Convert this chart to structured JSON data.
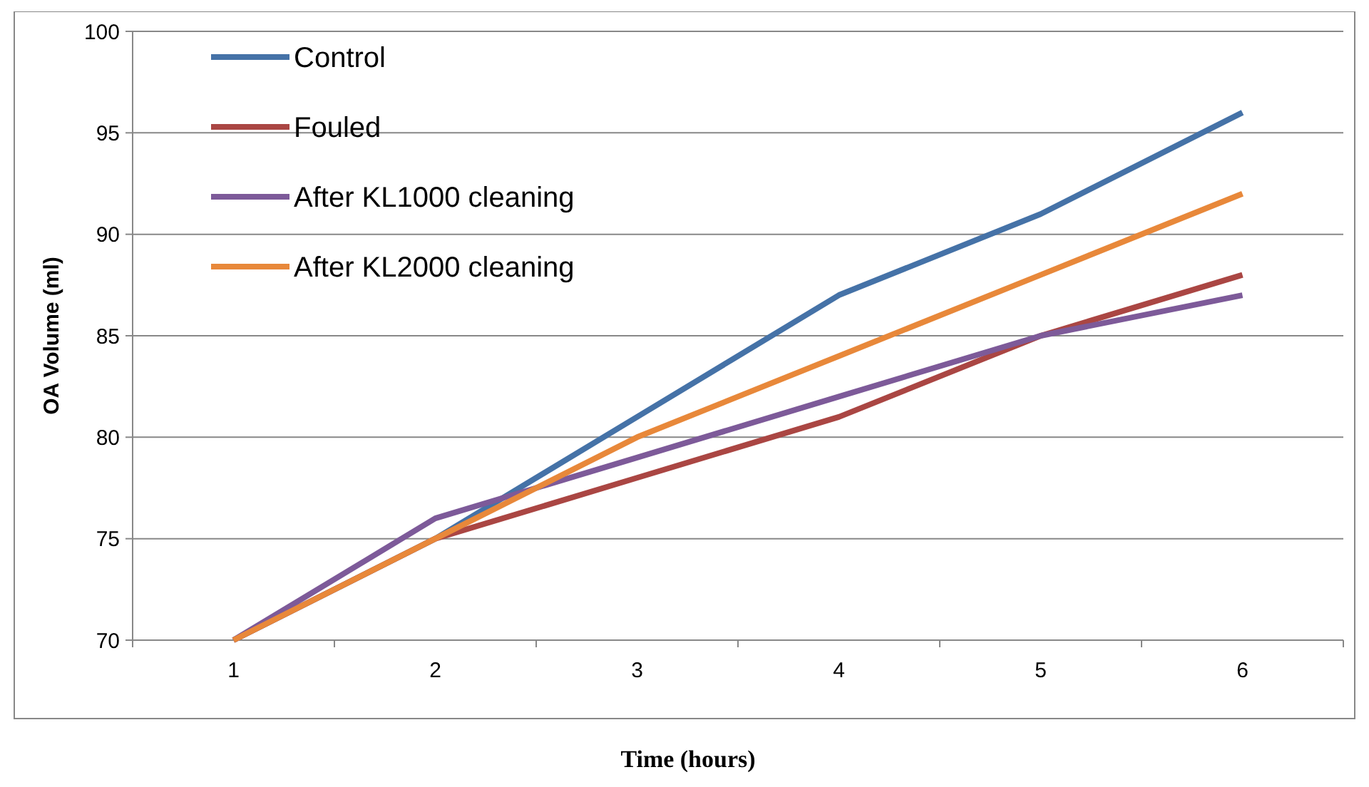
{
  "chart_data": {
    "type": "line",
    "xlabel": "Time (hours)",
    "ylabel": "OA Volume (ml)",
    "categories": [
      "1",
      "2",
      "3",
      "4",
      "5",
      "6"
    ],
    "ylim": [
      70,
      100
    ],
    "yticks": [
      70,
      75,
      80,
      85,
      90,
      95,
      100
    ],
    "grid": "y",
    "legend": "top left",
    "series": [
      {
        "name": "Control",
        "color": "#4572a7",
        "values": [
          70,
          75,
          81,
          87,
          91,
          96
        ]
      },
      {
        "name": "Fouled",
        "color": "#aa4643",
        "values": [
          70,
          75,
          78,
          81,
          85,
          88
        ]
      },
      {
        "name": "After KL1000 cleaning",
        "color": "#7d5a99",
        "values": [
          70,
          76,
          79,
          82,
          85,
          87
        ]
      },
      {
        "name": "After KL2000 cleaning",
        "color": "#e8883a",
        "values": [
          70,
          75,
          80,
          84,
          88,
          92
        ]
      }
    ]
  }
}
